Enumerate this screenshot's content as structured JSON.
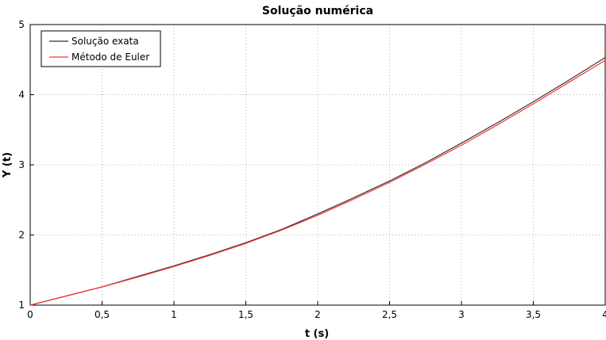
{
  "chart_data": {
    "type": "line",
    "title": "Solução numérica",
    "xlabel": "t (s)",
    "ylabel": "Y (t)",
    "xlim": [
      0,
      4
    ],
    "ylim": [
      1,
      5
    ],
    "x_ticks": [
      0,
      0.5,
      1,
      1.5,
      2,
      2.5,
      3,
      3.5,
      4
    ],
    "x_tick_labels": [
      "0",
      "0,5",
      "1",
      "1,5",
      "2",
      "2,5",
      "3",
      "3,5",
      "4"
    ],
    "y_ticks": [
      1,
      2,
      3,
      4,
      5
    ],
    "y_tick_labels": [
      "1",
      "2",
      "3",
      "4",
      "5"
    ],
    "grid": true,
    "legend_position": "top-left",
    "x": [
      0,
      0.25,
      0.5,
      0.75,
      1,
      1.25,
      1.5,
      1.75,
      2,
      2.25,
      2.5,
      2.75,
      3,
      3.25,
      3.5,
      3.75,
      4
    ],
    "series": [
      {
        "name": "Solução exata",
        "color": "#333333",
        "values": [
          1.0,
          1.13,
          1.26,
          1.41,
          1.56,
          1.72,
          1.89,
          2.08,
          2.3,
          2.53,
          2.77,
          3.03,
          3.31,
          3.6,
          3.9,
          4.21,
          4.53
        ]
      },
      {
        "name": "Método de Euler",
        "color": "#ff3333",
        "values": [
          1.0,
          1.13,
          1.26,
          1.4,
          1.55,
          1.71,
          1.88,
          2.07,
          2.28,
          2.51,
          2.75,
          3.01,
          3.28,
          3.57,
          3.87,
          4.18,
          4.49
        ]
      }
    ]
  }
}
